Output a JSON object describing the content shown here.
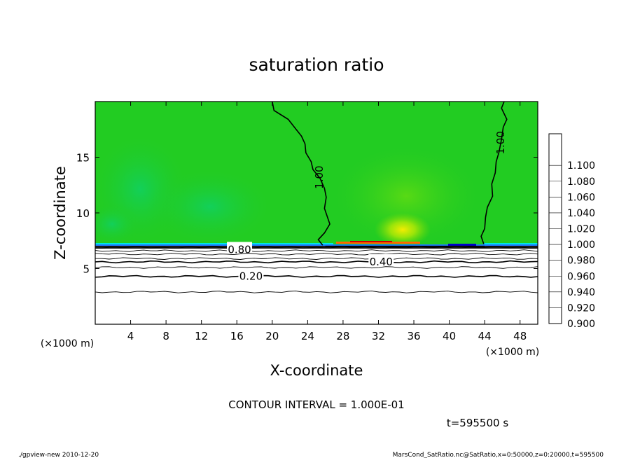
{
  "chart_data": {
    "type": "heatmap",
    "title": "saturation ratio",
    "xlabel": "X-coordinate",
    "ylabel": "Z-coordinate",
    "x_unit": "(×1000 m)",
    "y_unit": "(×1000 m)",
    "xlim": [
      0,
      50
    ],
    "ylim": [
      0,
      20
    ],
    "x_ticks": [
      "4",
      "8",
      "12",
      "16",
      "20",
      "24",
      "28",
      "32",
      "36",
      "40",
      "44",
      "48"
    ],
    "y_ticks": [
      "5",
      "10",
      "15"
    ],
    "x_tick_values": [
      4,
      8,
      12,
      16,
      20,
      24,
      28,
      32,
      36,
      40,
      44,
      48
    ],
    "y_tick_values": [
      5,
      10,
      15
    ],
    "colorbar": {
      "levels": [
        "0.900",
        "0.920",
        "0.940",
        "0.960",
        "0.980",
        "1.000",
        "1.020",
        "1.040",
        "1.060",
        "1.080",
        "1.100"
      ],
      "colors": [
        "#6a0dad",
        "#00008b",
        "#0000cd",
        "#1e78ff",
        "#00e5e5",
        "#00d0a0",
        "#22cc22",
        "#88dd00",
        "#ffdd00",
        "#ff9900",
        "#ff3300",
        "#ff9999"
      ]
    },
    "contour_labels": [
      {
        "text": "1.00",
        "x": 25.3,
        "z": 13.2
      },
      {
        "text": "1.00",
        "x": 45.8,
        "z": 16.3
      },
      {
        "text": "0.80",
        "x": 16.3,
        "z": 6.7
      },
      {
        "text": "0.40",
        "x": 32.3,
        "z": 5.6
      },
      {
        "text": "0.20",
        "x": 17.6,
        "z": 4.3
      }
    ],
    "cloud_base_z": 7.0,
    "low_contours_z": [
      2.9,
      4.3,
      5.1,
      5.6,
      5.9,
      6.3,
      6.6,
      6.9
    ],
    "moist_region_x": [
      26,
      44
    ],
    "contour_interval": "CONTOUR INTERVAL = 1.000E-01",
    "time": "t=595500 s",
    "footer_left": "./gpview-new  2010-12-20",
    "footer_right": "MarsCond_SatRatio.nc@SatRatio,x=0:50000,z=0:20000,t=595500"
  }
}
